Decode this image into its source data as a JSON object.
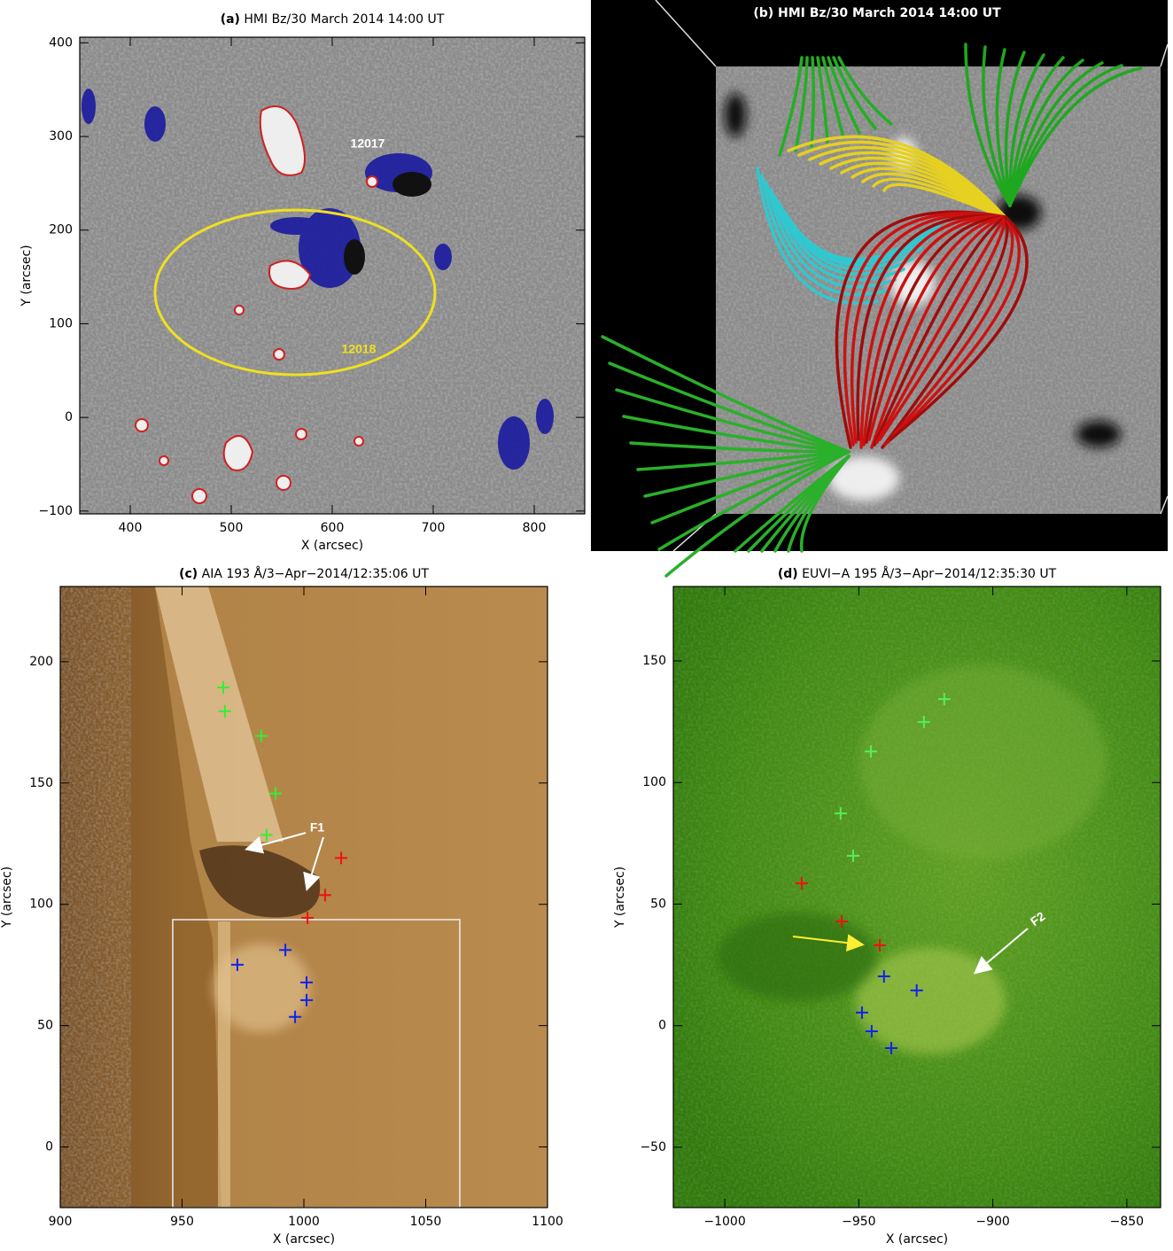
{
  "chart_data": [
    {
      "type": "image",
      "panel_label": "(a)",
      "title": "HMI Bz/30 March 2014 14:00 UT",
      "x_label": "X (arcsec)",
      "y_label": "Y (arcsec)",
      "xlim": [
        350,
        850
      ],
      "ylim": [
        -103,
        406
      ],
      "xticks": [
        400,
        500,
        600,
        700,
        800
      ],
      "yticks": [
        {
          "value": -100,
          "label": "−100"
        },
        0,
        100,
        200,
        300,
        400
      ],
      "annotations": [
        "12017",
        "12018"
      ]
    },
    {
      "type": "image",
      "panel_label": "(b)",
      "title": "HMI Bz/30 March 2014 14:00 UT"
    },
    {
      "type": "scatter",
      "panel_label": "(c)",
      "title": "AIA 193 Å/3−Apr−2014/12:35:06 UT",
      "x_label": "X (arcsec)",
      "y_label": "Y (arcsec)",
      "xlim": [
        900,
        1100
      ],
      "ylim": [
        -25,
        231
      ],
      "xticks": [
        900,
        950,
        1000,
        1050,
        1100
      ],
      "yticks": [
        0,
        50,
        100,
        150,
        200
      ],
      "annotations": [
        "F1"
      ],
      "series": [
        {
          "color": "#33ee33",
          "x": [
            966.9,
            967.6,
            982.5,
            988.4,
            984.7
          ],
          "values": [
            189.4,
            179.6,
            169.4,
            145.7,
            128.6
          ]
        },
        {
          "color": "#ee1111",
          "x": [
            1015.3,
            1008.7,
            1001.5
          ],
          "values": [
            119.1,
            103.8,
            94.4
          ]
        },
        {
          "color": "#1122ee",
          "x": [
            972.7,
            992.4,
            1001.1,
            1001.1,
            996.4
          ],
          "values": [
            75.1,
            81.2,
            67.8,
            60.5,
            53.6
          ]
        }
      ]
    },
    {
      "type": "scatter",
      "panel_label": "(d)",
      "title": "EUVI−A 195 Å/3−Apr−2014/12:35:30 UT",
      "x_label": "X (arcsec)",
      "y_label": "Y (arcsec)",
      "xlim": [
        -1019.2,
        -837.4
      ],
      "ylim": [
        -74.8,
        180.6
      ],
      "xticks": [
        {
          "value": -1000,
          "label": "−1000"
        },
        {
          "value": -950,
          "label": "−950"
        },
        {
          "value": -900,
          "label": "−900"
        },
        {
          "value": -850,
          "label": "−850"
        }
      ],
      "yticks": [
        {
          "value": -50,
          "label": "−50"
        },
        0,
        50,
        100,
        150
      ],
      "annotations": [
        "F2"
      ],
      "series": [
        {
          "color": "#55ee55",
          "x": [
            -918.1,
            -925.7,
            -945.5,
            -956.8,
            -952.1
          ],
          "values": [
            134.3,
            124.9,
            112.8,
            87.3,
            69.9
          ]
        },
        {
          "color": "#ee1111",
          "x": [
            -971.3,
            -956.4,
            -942.2
          ],
          "values": [
            58.6,
            42.9,
            33.1
          ]
        },
        {
          "color": "#1122ee",
          "x": [
            -940.6,
            -928.4,
            -948.8,
            -945.2,
            -937.9
          ],
          "values": [
            20.3,
            14.5,
            5.4,
            -2.3,
            -9.2
          ]
        }
      ]
    }
  ]
}
